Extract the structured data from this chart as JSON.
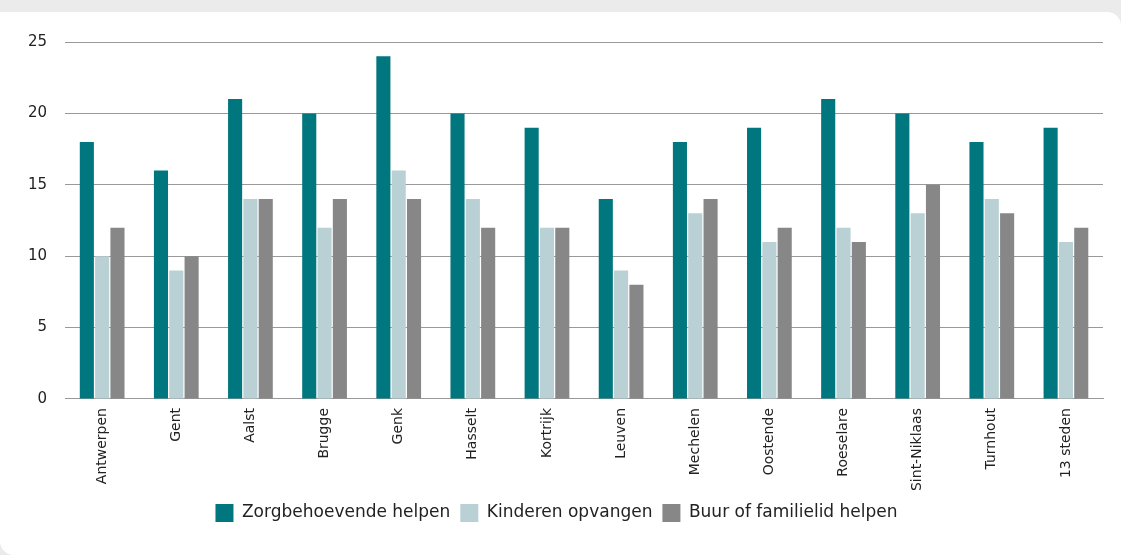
{
  "chart_data": {
    "type": "bar",
    "categories": [
      "Antwerpen",
      "Gent",
      "Aalst",
      "Brugge",
      "Genk",
      "Hasselt",
      "Kortrijk",
      "Leuven",
      "Mechelen",
      "Oostende",
      "Roeselare",
      "Sint-Niklaas",
      "Turnhout",
      "13 steden"
    ],
    "series": [
      {
        "name": "Zorgbehoevende helpen",
        "color": "#00767e",
        "values": [
          18,
          16,
          21,
          20,
          24,
          20,
          19,
          14,
          18,
          19,
          21,
          20,
          18,
          19
        ]
      },
      {
        "name": "Kinderen opvangen",
        "color": "#b9d0d4",
        "values": [
          10,
          9,
          14,
          12,
          16,
          14,
          12,
          9,
          13,
          11,
          12,
          13,
          14,
          11
        ]
      },
      {
        "name": "Buur of familielid helpen",
        "color": "#878787",
        "values": [
          12,
          10,
          14,
          14,
          14,
          12,
          12,
          8,
          14,
          12,
          11,
          15,
          13,
          12
        ]
      }
    ],
    "ylim": [
      0,
      25
    ],
    "yticks": [
      0,
      5,
      10,
      15,
      20,
      25
    ],
    "grid": "y",
    "legend": "bottom"
  }
}
